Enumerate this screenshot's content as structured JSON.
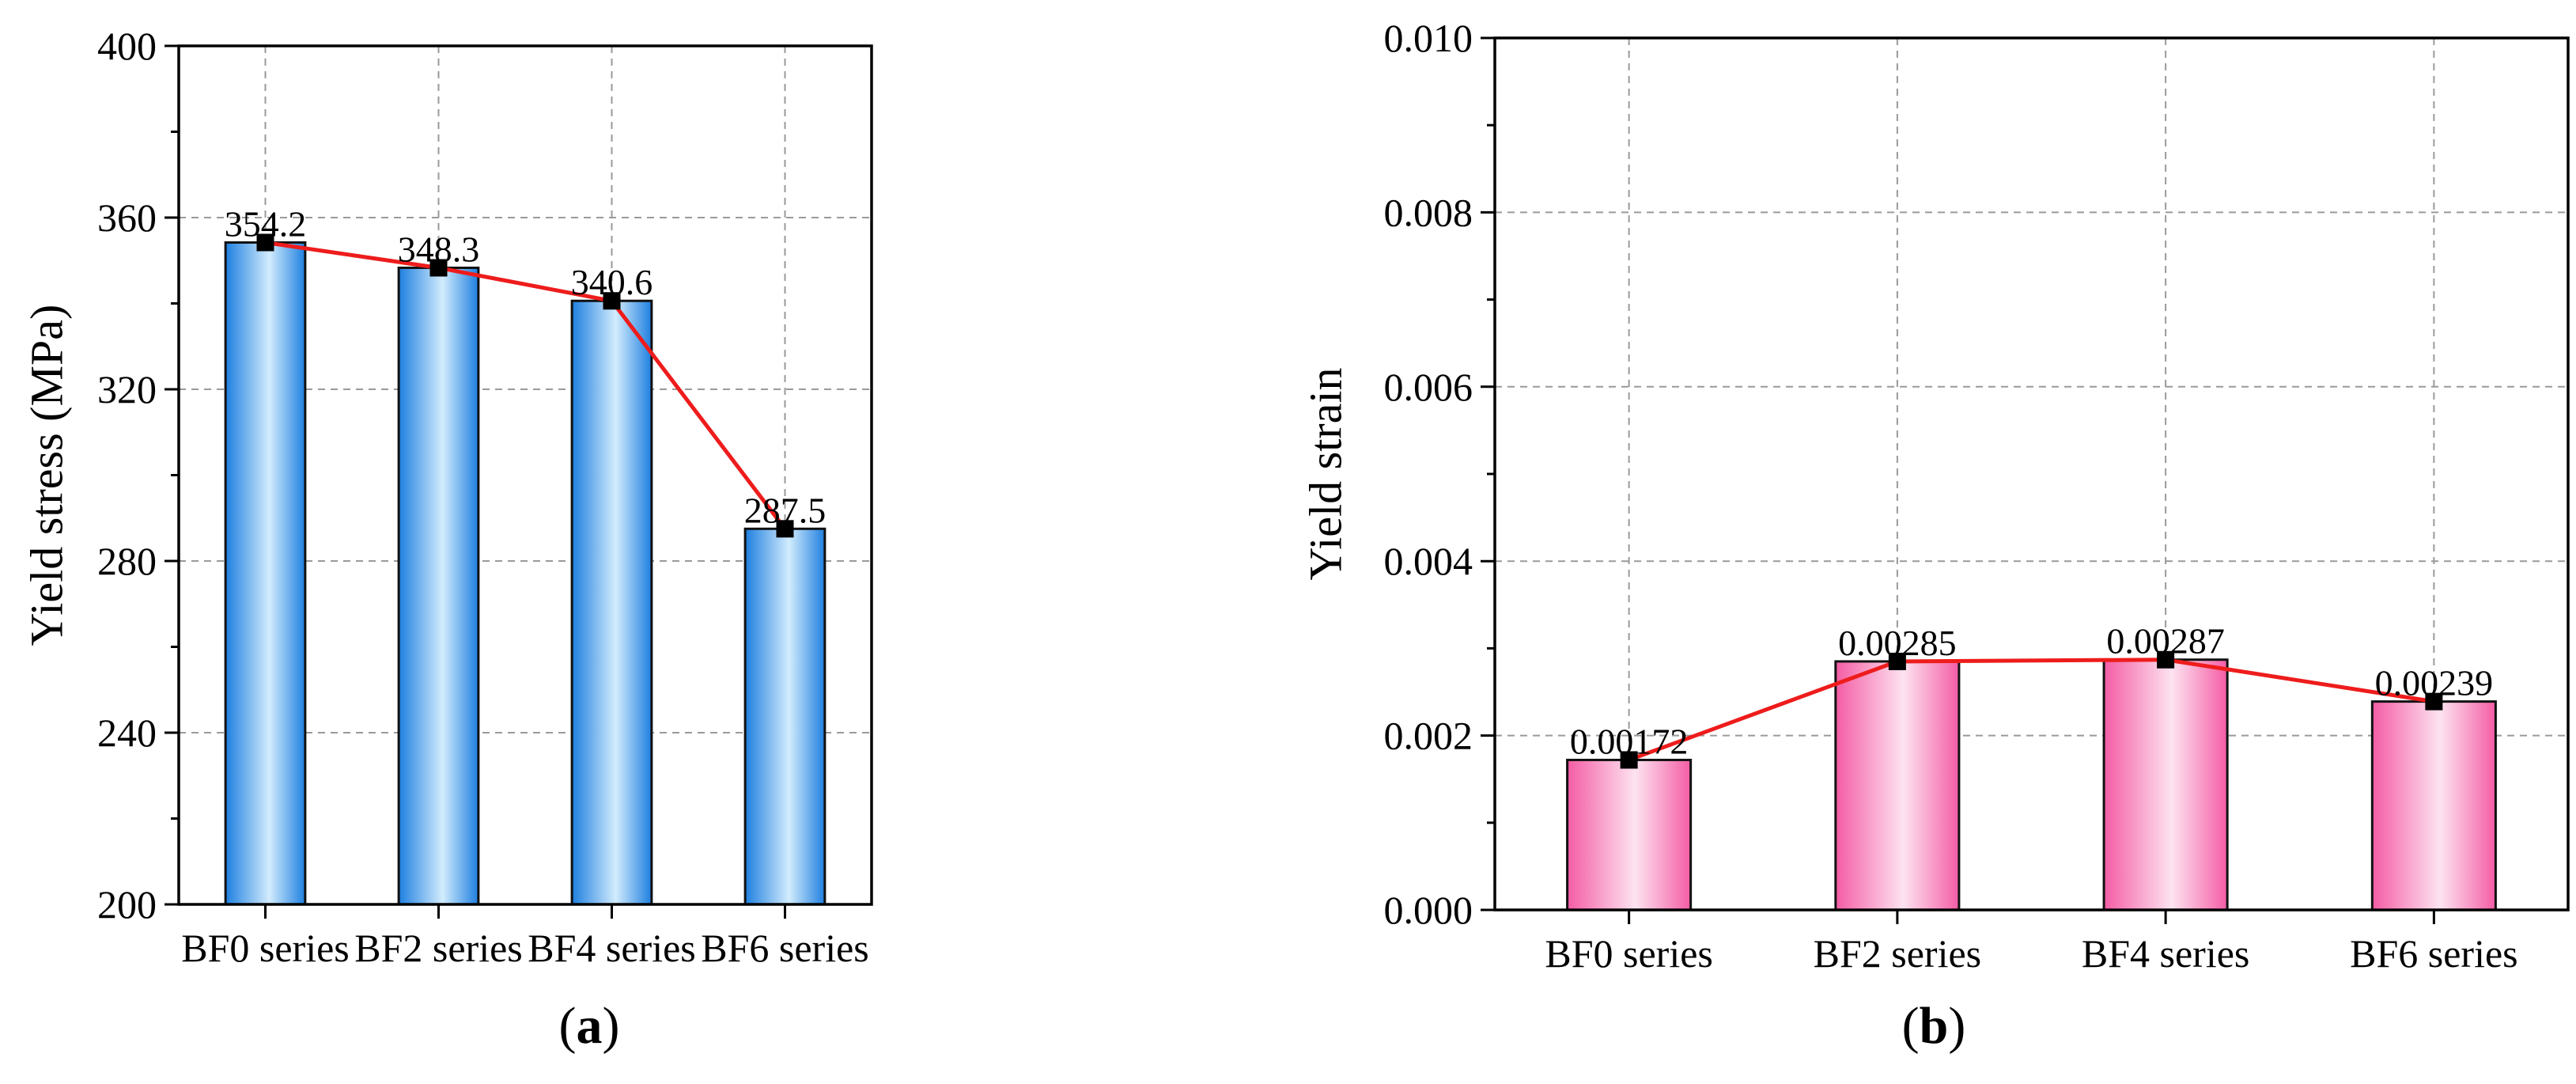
{
  "chart_data": [
    {
      "type": "bar",
      "panel_label": [
        "(",
        "a",
        ")"
      ],
      "categories": [
        "BF0 series",
        "BF2 series",
        "BF4 series",
        "BF6 series"
      ],
      "values": [
        354.2,
        348.3,
        340.6,
        287.5
      ],
      "value_labels": [
        "354.2",
        "348.3",
        "340.6",
        "287.5"
      ],
      "ylabel": "Yield stress (MPa)",
      "xlabel": "",
      "ylim": [
        200,
        400
      ],
      "yticks": [
        200,
        240,
        280,
        320,
        360,
        400
      ],
      "ytick_labels": [
        "200",
        "240",
        "280",
        "320",
        "360",
        "400"
      ],
      "grid": true,
      "overlay_line": true,
      "bar_colors": {
        "edge": "#1e7fe0",
        "center": "#d2ecfd"
      },
      "line_color": "#ee1c1c"
    },
    {
      "type": "bar",
      "panel_label": [
        "(",
        "b",
        ")"
      ],
      "categories": [
        "BF0 series",
        "BF2 series",
        "BF4 series",
        "BF6 series"
      ],
      "values": [
        0.00172,
        0.00285,
        0.00287,
        0.00239
      ],
      "value_labels": [
        "0.00172",
        "0.00285",
        "0.00287",
        "0.00239"
      ],
      "ylabel": "Yield strain",
      "xlabel": "",
      "ylim": [
        0,
        0.01
      ],
      "yticks": [
        0,
        0.002,
        0.004,
        0.006,
        0.008,
        0.01
      ],
      "ytick_labels": [
        "0.000",
        "0.002",
        "0.004",
        "0.006",
        "0.008",
        "0.010"
      ],
      "grid": true,
      "overlay_line": true,
      "bar_colors": {
        "edge": "#f45ca5",
        "center": "#fde3f0"
      },
      "line_color": "#ee1c1c"
    }
  ]
}
